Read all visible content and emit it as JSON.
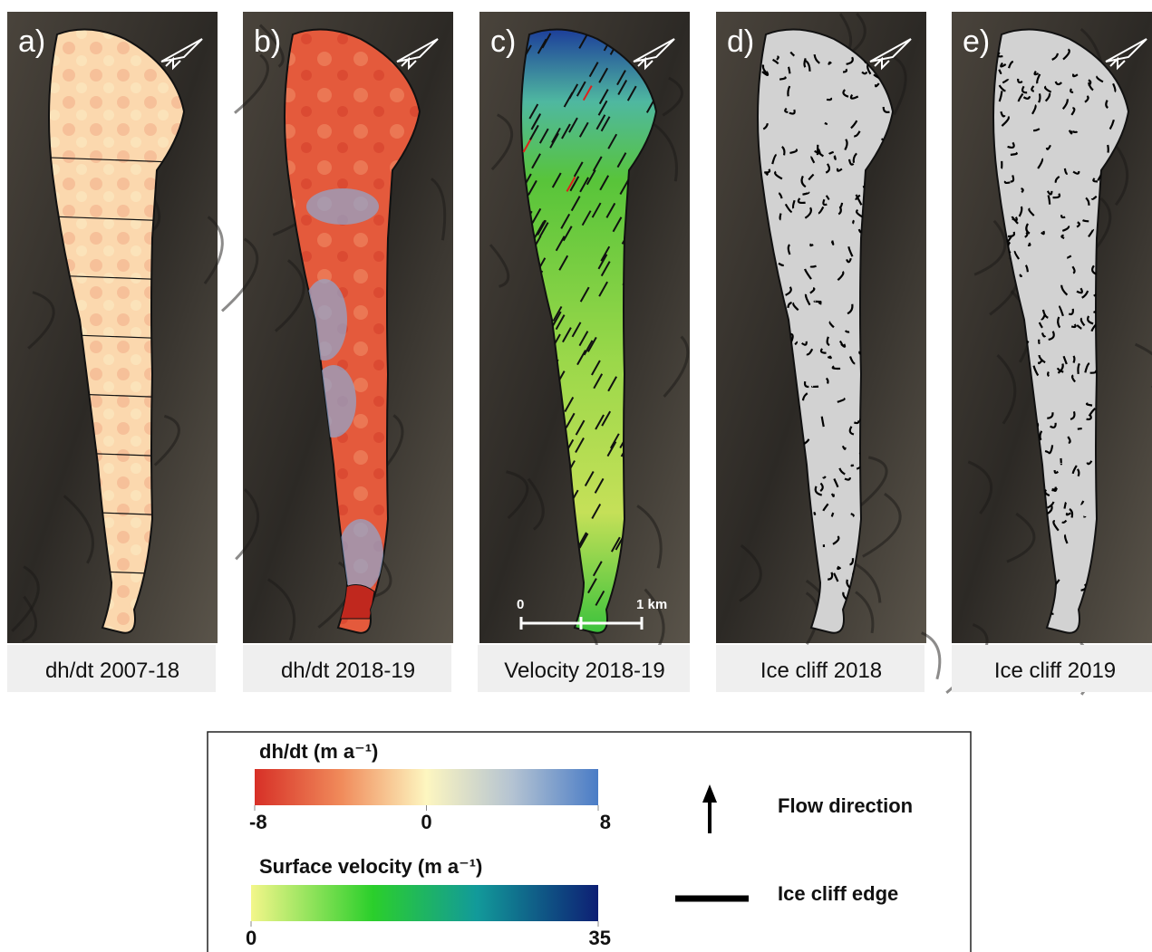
{
  "panels": [
    {
      "letter": "a)",
      "caption": "dh/dt 2007-18"
    },
    {
      "letter": "b)",
      "caption": "dh/dt 2018-19"
    },
    {
      "letter": "c)",
      "caption": "Velocity 2018-19"
    },
    {
      "letter": "d)",
      "caption": "Ice cliff 2018"
    },
    {
      "letter": "e)",
      "caption": "Ice cliff 2019"
    }
  ],
  "scale_bar": {
    "start": "0",
    "end": "1 km"
  },
  "legend": {
    "dhdt": {
      "title": "dh/dt (m a⁻¹)",
      "lim": [
        -8,
        8
      ],
      "ticks": [
        -8,
        0,
        8
      ]
    },
    "velocity": {
      "title": "Surface velocity (m a⁻¹)",
      "lim": [
        0,
        35
      ],
      "ticks": [
        0,
        35
      ]
    },
    "flow": "Flow direction",
    "cliff": "Ice cliff edge"
  }
}
